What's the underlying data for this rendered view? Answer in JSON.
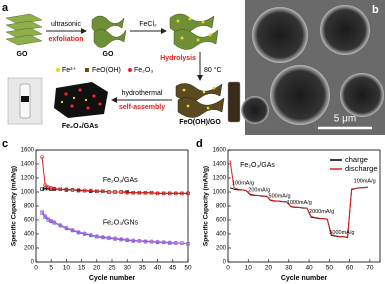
{
  "panel_labels": [
    "a",
    "b",
    "c",
    "d"
  ],
  "schematic": {
    "go_1": "GO",
    "ultrasonic": "ultrasonic",
    "exfoliation": "exfoliation",
    "go_2": "GO",
    "fecl2": "FeCl₂",
    "hydrolysis": "Hydrolysis",
    "temperature": "80 °C",
    "hydrothermal": "hydrothermal",
    "self_assembly": "self-assembly",
    "intermediate": "FeO(OH)/GO",
    "product": "Fe₂O₃/GAs",
    "legend": [
      "Fe³⁺",
      "FeO(OH)",
      "Fe₂O₃"
    ]
  },
  "micrograph": {
    "scale_bar": "5 μm"
  },
  "chart_data": [
    {
      "type": "line",
      "xlabel": "Cycle number",
      "ylabel": "Specific Capacity (mAh/g)",
      "annotations": [
        "Fe₂O₃/GAs",
        "Fe₂O₃/GNs"
      ],
      "xlim": [
        0,
        50
      ],
      "xticks": [
        0,
        5,
        10,
        15,
        20,
        25,
        30,
        35,
        40,
        45,
        50
      ],
      "ylim": [
        0,
        1600
      ],
      "yticks": [
        0,
        200,
        400,
        600,
        800,
        1000,
        1200,
        1400,
        1600
      ],
      "x": [
        2,
        3,
        4,
        5,
        6,
        8,
        10,
        12,
        14,
        16,
        18,
        20,
        22,
        24,
        26,
        28,
        30,
        32,
        34,
        36,
        38,
        40,
        42,
        44,
        46,
        48,
        50
      ],
      "series": [
        {
          "color": "#000000",
          "marker": "square",
          "values": [
            1040,
            1050,
            1050,
            1040,
            1040,
            1040,
            1030,
            1030,
            1020,
            1020,
            1010,
            1010,
            1010,
            1000,
            1000,
            1000,
            1000,
            990,
            990,
            990,
            990,
            980,
            980,
            980,
            980,
            980,
            980
          ]
        },
        {
          "color": "#e0201b",
          "marker": "circle",
          "values": [
            1500,
            1100,
            1070,
            1060,
            1050,
            1040,
            1040,
            1030,
            1030,
            1020,
            1020,
            1010,
            1010,
            1000,
            1000,
            1000,
            990,
            990,
            990,
            990,
            990,
            980,
            980,
            980,
            980,
            980,
            980
          ]
        },
        {
          "color": "#4a5cd8",
          "marker": "square",
          "values": [
            700,
            640,
            600,
            580,
            560,
            520,
            480,
            450,
            420,
            400,
            380,
            360,
            350,
            340,
            330,
            320,
            310,
            300,
            300,
            290,
            290,
            280,
            280,
            270,
            270,
            270,
            260
          ]
        },
        {
          "color": "#b565d8",
          "marker": "circle",
          "values": [
            720,
            660,
            620,
            590,
            570,
            530,
            490,
            460,
            430,
            410,
            390,
            370,
            360,
            350,
            340,
            330,
            320,
            310,
            305,
            300,
            295,
            290,
            285,
            280,
            275,
            270,
            265
          ]
        }
      ]
    },
    {
      "type": "line",
      "xlabel": "Cycle number",
      "ylabel": "Specific Capacity (mAh/g)",
      "annotations": [
        "Fe₂O₃/GAs",
        "100mA/g",
        "200mA/g",
        "500mA/g",
        "1000mA/g",
        "2000mA/g",
        "5000mA/g",
        "100mA/g"
      ],
      "legend": "upper right",
      "xlim": [
        0,
        75
      ],
      "xticks": [
        0,
        10,
        20,
        30,
        40,
        50,
        60,
        70
      ],
      "ylim": [
        0,
        1600
      ],
      "yticks": [
        0,
        200,
        400,
        600,
        800,
        1000,
        1200,
        1400,
        1600
      ],
      "x": [
        1,
        3,
        5,
        7,
        9,
        11,
        13,
        15,
        17,
        19,
        21,
        23,
        25,
        27,
        29,
        31,
        33,
        35,
        37,
        39,
        41,
        43,
        45,
        47,
        49,
        51,
        53,
        55,
        57,
        59,
        61,
        63,
        65,
        67,
        69
      ],
      "series": [
        {
          "name": "charge",
          "color": "#000000",
          "marker": "none",
          "values": [
            1060,
            1040,
            1030,
            1030,
            1020,
            960,
            950,
            950,
            940,
            940,
            880,
            870,
            870,
            860,
            860,
            790,
            780,
            780,
            770,
            770,
            640,
            630,
            620,
            620,
            610,
            380,
            370,
            360,
            360,
            350,
            1040,
            1050,
            1060,
            1060,
            1070
          ]
        },
        {
          "name": "discharge",
          "color": "#e0201b",
          "marker": "none",
          "values": [
            1450,
            1060,
            1040,
            1030,
            1020,
            970,
            955,
            950,
            945,
            940,
            885,
            875,
            870,
            865,
            860,
            795,
            785,
            780,
            775,
            770,
            650,
            635,
            625,
            620,
            615,
            390,
            375,
            365,
            360,
            355,
            1030,
            1050,
            1060,
            1065,
            1070
          ]
        }
      ]
    }
  ]
}
